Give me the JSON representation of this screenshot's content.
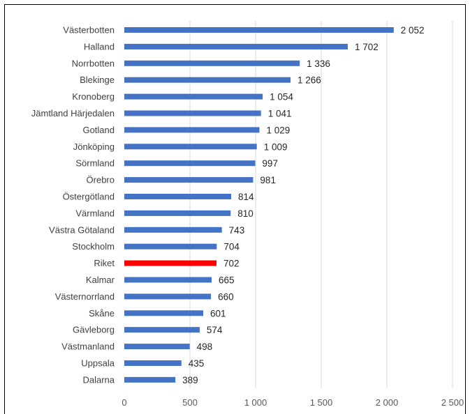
{
  "chart_data": {
    "type": "bar",
    "orientation": "horizontal",
    "categories": [
      "Västerbotten",
      "Halland",
      "Norrbotten",
      "Blekinge",
      "Kronoberg",
      "Jämtland Härjedalen",
      "Gotland",
      "Jönköping",
      "Sörmland",
      "Örebro",
      "Östergötland",
      "Värmland",
      "Västra Götaland",
      "Stockholm",
      "Riket",
      "Kalmar",
      "Västernorrland",
      "Skåne",
      "Gävleborg",
      "Västmanland",
      "Uppsala",
      "Dalarna"
    ],
    "values": [
      2052,
      1702,
      1336,
      1266,
      1054,
      1041,
      1029,
      1009,
      997,
      981,
      814,
      810,
      743,
      704,
      702,
      665,
      660,
      601,
      574,
      498,
      435,
      389
    ],
    "data_labels": [
      "2 052",
      "1 702",
      "1 336",
      "1 266",
      "1 054",
      "1 041",
      "1 029",
      "1 009",
      "997",
      "981",
      "814",
      "810",
      "743",
      "704",
      "702",
      "665",
      "660",
      "601",
      "574",
      "498",
      "435",
      "389"
    ],
    "xlim": [
      0,
      2500
    ],
    "xticks": [
      0,
      500,
      1000,
      1500,
      2000,
      2500
    ],
    "xtick_labels": [
      "0",
      "500",
      "1 000",
      "1 500",
      "2 000",
      "2 500"
    ],
    "grid": true,
    "title": "",
    "xlabel": "",
    "ylabel": "",
    "colors": {
      "bar": "#4472c4",
      "highlight": "#ff0000"
    },
    "highlight_category": "Riket"
  }
}
